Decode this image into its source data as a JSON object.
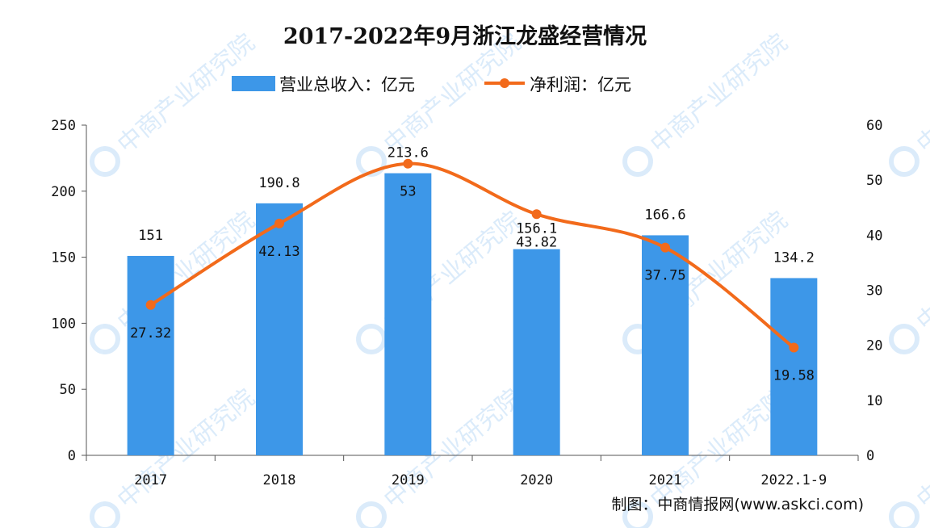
{
  "chart_data": {
    "type": "bar+line",
    "title": "2017-2022年9月浙江龙盛经营情况",
    "categories": [
      "2017",
      "2018",
      "2019",
      "2020",
      "2021",
      "2022.1-9"
    ],
    "series": [
      {
        "name": "营业总收入：亿元",
        "type": "bar",
        "axis": "left",
        "color": "#3d97e8",
        "values": [
          151,
          190.8,
          213.6,
          156.1,
          166.6,
          134.2
        ],
        "labels": [
          "151",
          "190.8",
          "213.6",
          "156.1",
          "166.6",
          "134.2"
        ]
      },
      {
        "name": "净利润：亿元",
        "type": "line",
        "axis": "right",
        "color": "#f26a1b",
        "smooth": true,
        "values": [
          27.32,
          42.13,
          53,
          43.82,
          37.75,
          19.58
        ],
        "labels": [
          "27.32",
          "42.13",
          "53",
          "43.82",
          "37.75",
          "19.58"
        ]
      }
    ],
    "left_axis": {
      "ylim": [
        0,
        250
      ],
      "ticks": [
        "0",
        "50",
        "100",
        "150",
        "200",
        "250"
      ]
    },
    "right_axis": {
      "ylim": [
        0,
        60
      ],
      "ticks": [
        "0",
        "10",
        "20",
        "30",
        "40",
        "50",
        "60"
      ]
    },
    "grid": false,
    "legend_position": "top"
  },
  "source": "制图：中商情报网(www.askci.com)",
  "watermark": "中商产业研究院"
}
